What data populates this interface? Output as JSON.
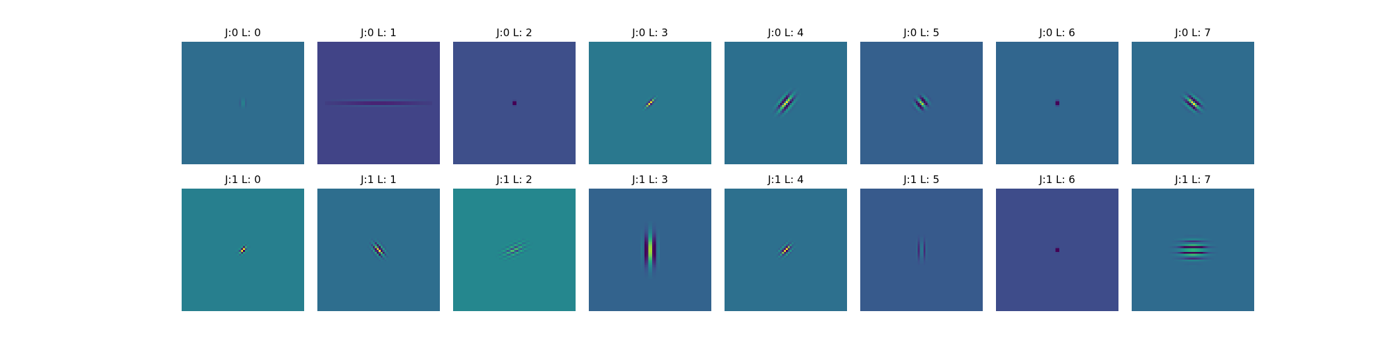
{
  "chart_data": {
    "type": "heatmap",
    "colormap": "viridis",
    "rows": 2,
    "cols": 8,
    "axes_visible": false,
    "panels": [
      {
        "title": "J:0 L: 0",
        "background": "#2f6d8e",
        "kernel": {
          "angle_deg": 0,
          "sigma_u": 0.9,
          "sigma_v": 1.4,
          "freq": 0.45,
          "amp": 1.0,
          "phase": 0
        }
      },
      {
        "title": "J:0 L: 1",
        "background": "#414487",
        "kernel": {
          "angle_deg": 90,
          "sigma_u": 0.8,
          "sigma_v": 14,
          "freq": 0.55,
          "amp": 1.2,
          "phase": 0
        }
      },
      {
        "title": "J:0 L: 2",
        "background": "#3e4f8a",
        "kernel": {
          "angle_deg": 0,
          "sigma_u": 0.5,
          "sigma_v": 0.6,
          "freq": 0.9,
          "amp": 1.2,
          "phase": 0
        }
      },
      {
        "title": "J:0 L: 3",
        "background": "#2a788e",
        "kernel": {
          "angle_deg": 45,
          "sigma_u": 0.9,
          "sigma_v": 2.2,
          "freq": 0.5,
          "amp": 1.1,
          "phase": 0
        }
      },
      {
        "title": "J:0 L: 4",
        "background": "#2c6f8e",
        "kernel": {
          "angle_deg": 40,
          "sigma_u": 2.0,
          "sigma_v": 3.5,
          "freq": 0.32,
          "amp": 1.2,
          "phase": 0
        }
      },
      {
        "title": "J:0 L: 5",
        "background": "#35608d",
        "kernel": {
          "angle_deg": -40,
          "sigma_u": 2.2,
          "sigma_v": 2.0,
          "freq": 0.3,
          "amp": 1.1,
          "phase": 0
        }
      },
      {
        "title": "J:0 L: 6",
        "background": "#31668e",
        "kernel": {
          "angle_deg": 0,
          "sigma_u": 0.6,
          "sigma_v": 0.9,
          "freq": 0.9,
          "amp": 1.0,
          "phase": 0
        }
      },
      {
        "title": "J:0 L: 7",
        "background": "#2f6c8e",
        "kernel": {
          "angle_deg": -50,
          "sigma_u": 2.0,
          "sigma_v": 3.0,
          "freq": 0.32,
          "amp": 1.2,
          "phase": 0
        }
      },
      {
        "title": "J:1 L: 0",
        "background": "#277f8e",
        "kernel": {
          "angle_deg": 50,
          "sigma_u": 1.0,
          "sigma_v": 1.8,
          "freq": 0.6,
          "amp": 1.1,
          "phase": 0
        }
      },
      {
        "title": "J:1 L: 1",
        "background": "#2e6e8e",
        "kernel": {
          "angle_deg": -40,
          "sigma_u": 1.6,
          "sigma_v": 2.6,
          "freq": 0.45,
          "amp": 1.2,
          "phase": 0
        }
      },
      {
        "title": "J:1 L: 2",
        "background": "#25878e",
        "kernel": {
          "angle_deg": 65,
          "sigma_u": 2.0,
          "sigma_v": 4.0,
          "freq": 0.5,
          "amp": 0.6,
          "phase": 0
        }
      },
      {
        "title": "J:1 L: 3",
        "background": "#33638d",
        "kernel": {
          "angle_deg": 0,
          "sigma_u": 2.2,
          "sigma_v": 5.5,
          "freq": 0.22,
          "amp": 1.3,
          "phase": 0
        }
      },
      {
        "title": "J:1 L: 4",
        "background": "#2d708e",
        "kernel": {
          "angle_deg": 45,
          "sigma_u": 1.4,
          "sigma_v": 2.4,
          "freq": 0.5,
          "amp": 1.2,
          "phase": 0
        }
      },
      {
        "title": "J:1 L: 5",
        "background": "#375a8c",
        "kernel": {
          "angle_deg": 0,
          "sigma_u": 1.2,
          "sigma_v": 3.5,
          "freq": 0.45,
          "amp": 1.3,
          "phase": 0
        }
      },
      {
        "title": "J:1 L: 6",
        "background": "#3e4c8a",
        "kernel": {
          "angle_deg": 0,
          "sigma_u": 0.5,
          "sigma_v": 0.6,
          "freq": 0.9,
          "amp": 1.2,
          "phase": 0
        }
      },
      {
        "title": "J:1 L: 7",
        "background": "#2f6b8e",
        "kernel": {
          "angle_deg": 90,
          "sigma_u": 3.0,
          "sigma_v": 4.5,
          "freq": 0.35,
          "amp": 1.2,
          "phase": 0
        }
      }
    ]
  }
}
